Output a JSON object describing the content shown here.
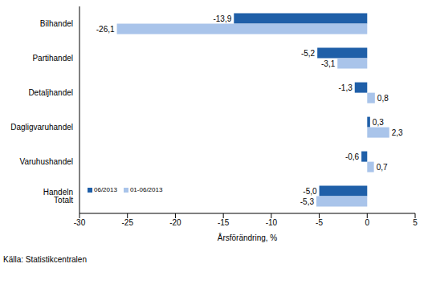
{
  "chart_data": {
    "type": "bar",
    "orientation": "horizontal",
    "categories": [
      "Bilhandel",
      "Partihandel",
      "Detaljhandel",
      "Dagligvaruhandel",
      "Varuhushandel",
      "Handeln Totalt"
    ],
    "series": [
      {
        "name": "06/2013",
        "color": "#1f5fa8",
        "values": [
          -13.9,
          -5.2,
          -1.3,
          0.3,
          -0.6,
          -5.0
        ],
        "value_labels": [
          "-13,9",
          "-5,2",
          "-1,3",
          "0,3",
          "-0,6",
          "-5,0"
        ]
      },
      {
        "name": "01-06/2013",
        "color": "#a9c4ea",
        "values": [
          -26.1,
          -3.1,
          0.8,
          2.3,
          0.7,
          -5.3
        ],
        "value_labels": [
          "-26,1",
          "-3,1",
          "0,8",
          "2,3",
          "0,7",
          "-5,3"
        ]
      }
    ],
    "xlim": [
      -30,
      5
    ],
    "xticks": [
      -30,
      -25,
      -20,
      -15,
      -10,
      -5,
      0,
      5
    ],
    "x_label": "Årsförändring, %",
    "source": "Källa: Statistikcentralen",
    "data_labels": true,
    "legend": "lower left",
    "grid": false
  }
}
